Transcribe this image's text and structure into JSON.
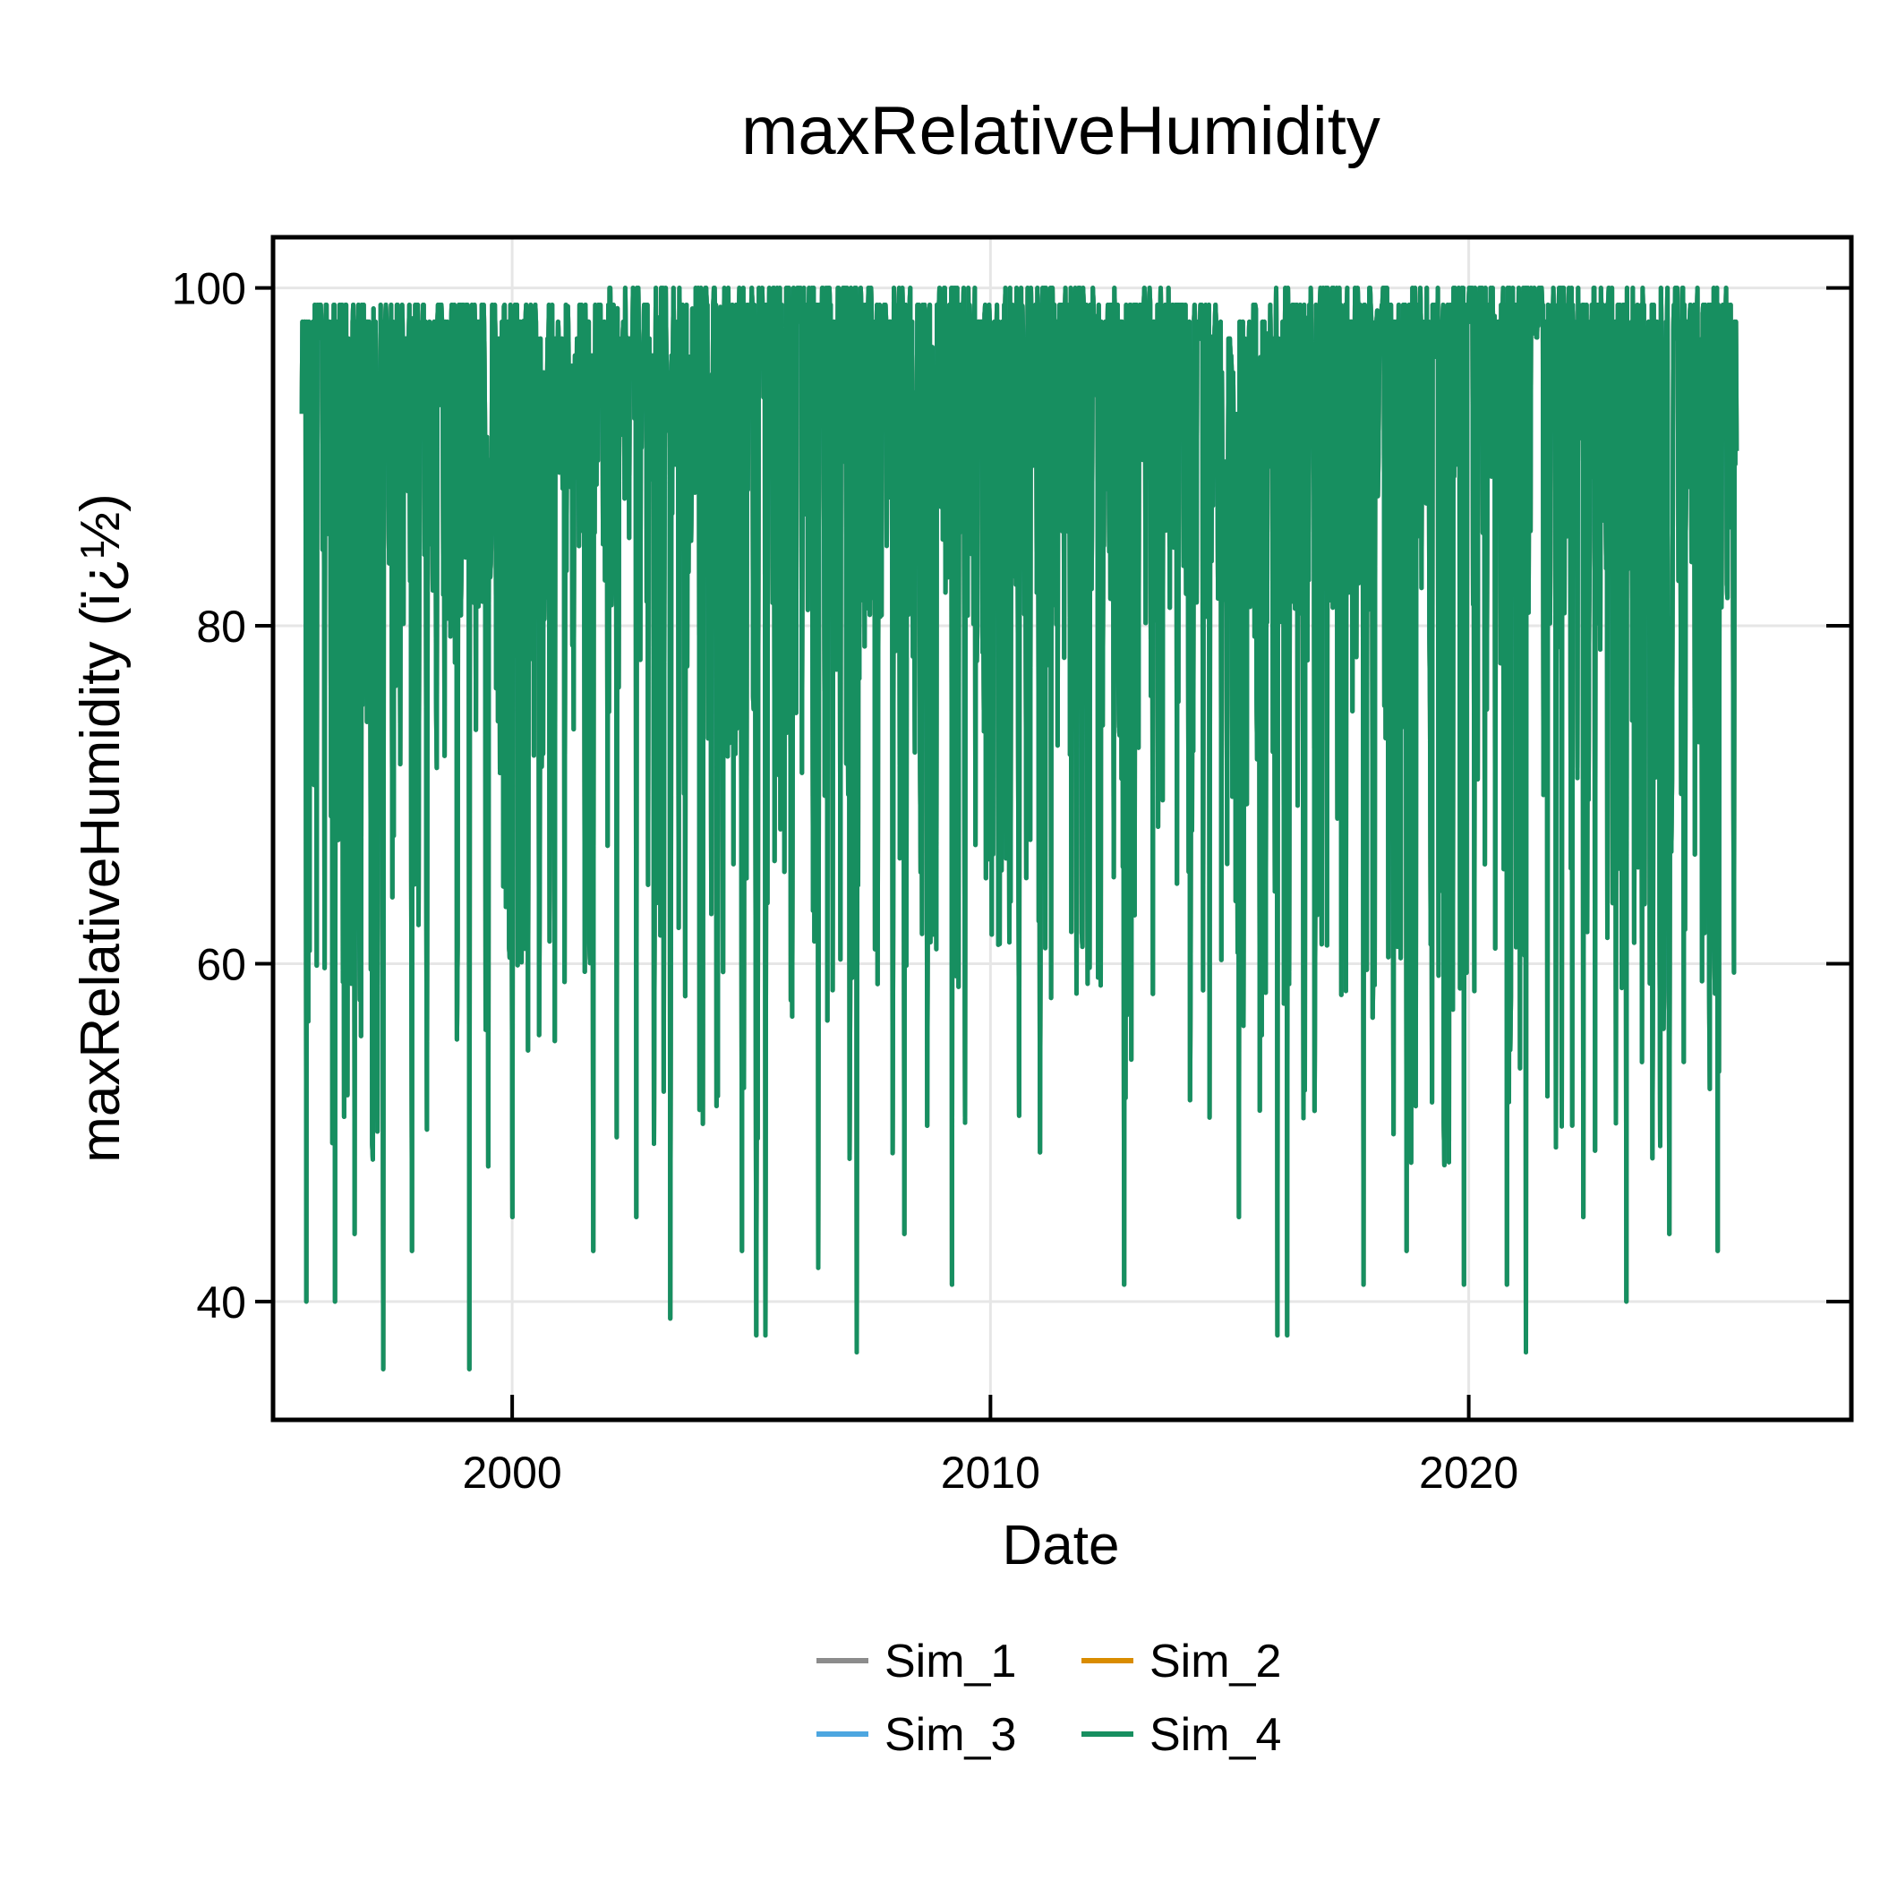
{
  "chart_data": {
    "type": "line",
    "title": "maxRelativeHumidity",
    "xlabel": "Date",
    "ylabel": "maxRelativeHumidity (ï¿½)",
    "x_range": [
      1995.0,
      2028.0
    ],
    "y_range": [
      33.0,
      103.0
    ],
    "x_ticks": [
      2000,
      2010,
      2020
    ],
    "x_tick_labels": [
      "2000",
      "2010",
      "2020"
    ],
    "y_ticks": [
      40,
      60,
      80,
      100
    ],
    "y_tick_labels": [
      "40",
      "60",
      "80",
      "100"
    ],
    "grid": true,
    "legend_position": "bottom-center",
    "date_span": [
      1995.6,
      2025.6
    ],
    "series": [
      {
        "name": "Sim_1",
        "color": "#8c8c8c"
      },
      {
        "name": "Sim_2",
        "color": "#d98c00"
      },
      {
        "name": "Sim_3",
        "color": "#4da6e0"
      },
      {
        "name": "Sim_4",
        "color": "#178f60"
      }
    ],
    "visible_series": "Sim_4",
    "summary": {
      "upper_envelope": [
        [
          1995.6,
          99
        ],
        [
          1997.2,
          99
        ],
        [
          1997.6,
          99
        ],
        [
          2000.5,
          99
        ],
        [
          2001.6,
          97
        ],
        [
          2003.7,
          100
        ],
        [
          2006.0,
          100
        ],
        [
          2008.3,
          100
        ],
        [
          2010.1,
          100
        ],
        [
          2012.0,
          100
        ],
        [
          2014.5,
          99
        ],
        [
          2015.6,
          97
        ],
        [
          2016.8,
          100
        ],
        [
          2019.6,
          100
        ],
        [
          2021.2,
          100
        ],
        [
          2023.0,
          100
        ],
        [
          2025.6,
          99
        ]
      ],
      "lower_spikes": [
        [
          1995.7,
          40
        ],
        [
          1996.3,
          40
        ],
        [
          1996.7,
          44
        ],
        [
          1997.3,
          36
        ],
        [
          1997.9,
          43
        ],
        [
          1999.1,
          36
        ],
        [
          1999.5,
          48
        ],
        [
          2000.0,
          45
        ],
        [
          2001.7,
          43
        ],
        [
          2002.6,
          45
        ],
        [
          2003.3,
          39
        ],
        [
          2004.8,
          43
        ],
        [
          2005.1,
          38
        ],
        [
          2005.3,
          38
        ],
        [
          2006.4,
          42
        ],
        [
          2007.2,
          37
        ],
        [
          2008.2,
          44
        ],
        [
          2009.2,
          41
        ],
        [
          2010.6,
          51
        ],
        [
          2012.8,
          41
        ],
        [
          2015.2,
          45
        ],
        [
          2016.0,
          38
        ],
        [
          2016.2,
          38
        ],
        [
          2017.8,
          41
        ],
        [
          2018.7,
          43
        ],
        [
          2019.9,
          41
        ],
        [
          2020.8,
          41
        ],
        [
          2021.2,
          37
        ],
        [
          2022.4,
          45
        ],
        [
          2023.3,
          40
        ],
        [
          2024.2,
          44
        ],
        [
          2025.2,
          43
        ]
      ],
      "typical_range": [
        58,
        99
      ]
    }
  }
}
